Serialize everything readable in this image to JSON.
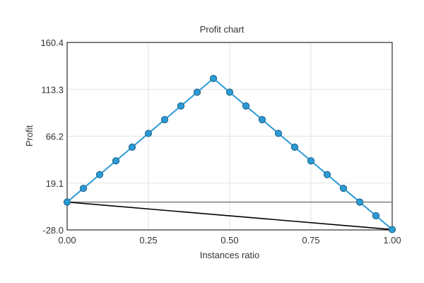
{
  "chart_data": {
    "type": "line",
    "title": "Profit chart",
    "xlabel": "Instances ratio",
    "ylabel": "Profit",
    "xlim": [
      0,
      1
    ],
    "ylim": [
      -28.0,
      160.4
    ],
    "x_ticks": [
      {
        "value": 0.0,
        "label": "0.00"
      },
      {
        "value": 0.25,
        "label": "0.25"
      },
      {
        "value": 0.5,
        "label": "0.50"
      },
      {
        "value": 0.75,
        "label": "0.75"
      },
      {
        "value": 1.0,
        "label": "1.00"
      }
    ],
    "y_ticks": [
      {
        "value": -28.0,
        "label": "-28.0"
      },
      {
        "value": 19.1,
        "label": "19.1"
      },
      {
        "value": 66.2,
        "label": "66.2"
      },
      {
        "value": 113.3,
        "label": "113.3"
      },
      {
        "value": 160.4,
        "label": "160.4"
      }
    ],
    "grid": true,
    "series": [
      {
        "role": "profit-curve",
        "color": "#2b9bd6",
        "marker_color": "#2b9bd6",
        "marker_edge": "#1d5d83",
        "markers": true,
        "x": [
          0.0,
          0.05,
          0.1,
          0.15,
          0.2,
          0.25,
          0.3,
          0.35,
          0.4,
          0.45,
          0.5,
          0.55,
          0.6,
          0.65,
          0.7,
          0.75,
          0.8,
          0.85,
          0.9,
          0.95,
          1.0
        ],
        "y": [
          0.0,
          13.8,
          27.6,
          41.4,
          55.2,
          69.0,
          82.8,
          96.6,
          110.4,
          124.2,
          110.4,
          96.6,
          82.8,
          69.0,
          55.2,
          41.4,
          27.6,
          13.8,
          0.0,
          -13.8,
          -27.6
        ]
      },
      {
        "role": "zero-line",
        "color": "#808080",
        "markers": false,
        "x": [
          0.0,
          1.0
        ],
        "y": [
          0.0,
          0.0
        ]
      },
      {
        "role": "baseline",
        "color": "#000000",
        "markers": false,
        "x": [
          0.0,
          1.0
        ],
        "y": [
          0.0,
          -27.6
        ]
      }
    ]
  }
}
